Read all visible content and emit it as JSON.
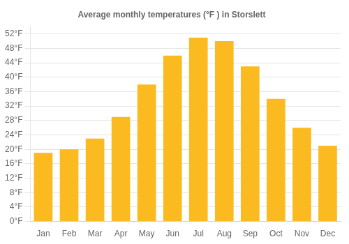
{
  "chart_data": {
    "type": "bar",
    "title": "Average monthly temperatures (°F ) in Storslett",
    "categories": [
      "Jan",
      "Feb",
      "Mar",
      "Apr",
      "May",
      "Jun",
      "Jul",
      "Aug",
      "Sep",
      "Oct",
      "Nov",
      "Dec"
    ],
    "values": [
      19,
      20,
      23,
      29,
      38,
      46,
      51,
      50,
      43,
      34,
      26,
      21
    ],
    "color": "#FBBA20",
    "ylim": [
      0,
      54
    ],
    "yticks": [
      {
        "value": 0,
        "label": "0°F"
      },
      {
        "value": 4,
        "label": "4°F"
      },
      {
        "value": 8,
        "label": "8°F"
      },
      {
        "value": 12,
        "label": "12°F"
      },
      {
        "value": 16,
        "label": "16°F"
      },
      {
        "value": 20,
        "label": "20°F"
      },
      {
        "value": 24,
        "label": "24°F"
      },
      {
        "value": 28,
        "label": "28°F"
      },
      {
        "value": 32,
        "label": "32°F"
      },
      {
        "value": 36,
        "label": "36°F"
      },
      {
        "value": 40,
        "label": "40°F"
      },
      {
        "value": 44,
        "label": "44°F"
      },
      {
        "value": 48,
        "label": "48°F"
      },
      {
        "value": 52,
        "label": "52°F"
      }
    ],
    "grid": true
  }
}
